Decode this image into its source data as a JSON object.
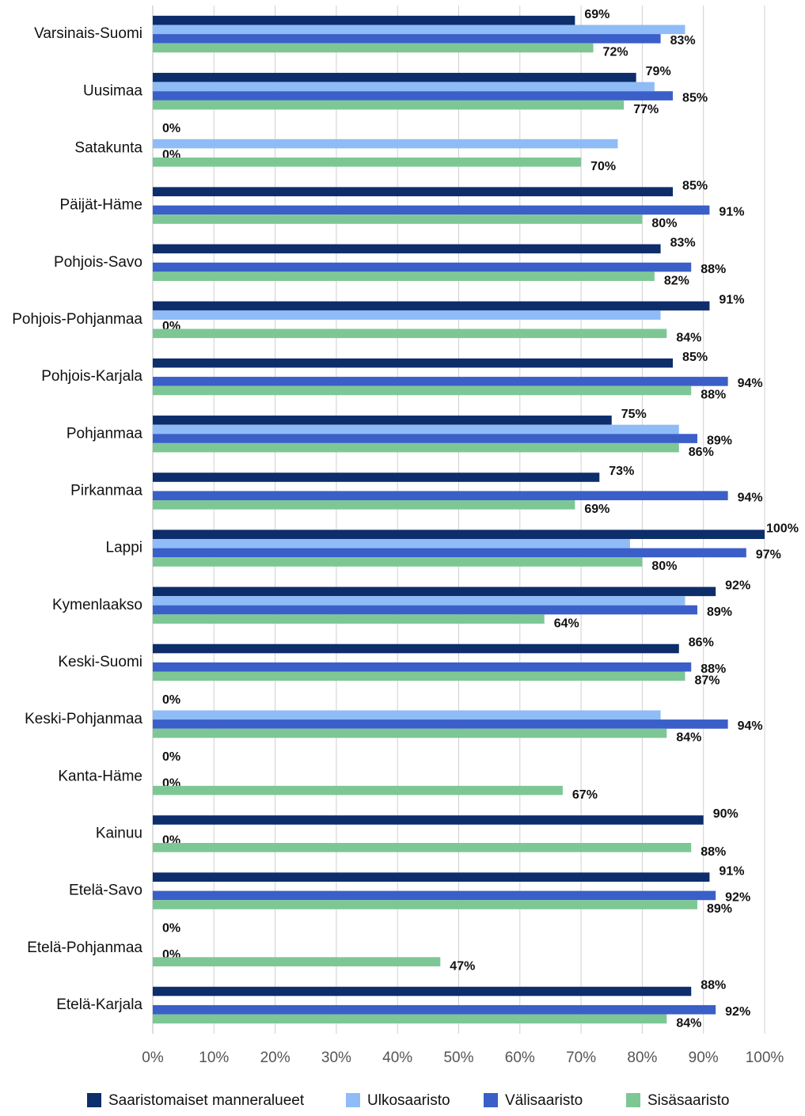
{
  "chart_data": {
    "type": "barh",
    "categories": [
      "Varsinais-Suomi",
      "Uusimaa",
      "Satakunta",
      "Päijät-Häme",
      "Pohjois-Savo",
      "Pohjois-Pohjanmaa",
      "Pohjois-Karjala",
      "Pohjanmaa",
      "Pirkanmaa",
      "Lappi",
      "Kymenlaakso",
      "Keski-Suomi",
      "Keski-Pohjanmaa",
      "Kanta-Häme",
      "Kainuu",
      "Etelä-Savo",
      "Etelä-Pohjanmaa",
      "Etelä-Karjala"
    ],
    "series": [
      {
        "name": "Saaristomaiset manneralueet",
        "color": "#0d2d6b",
        "values": [
          69,
          79,
          0,
          85,
          83,
          91,
          85,
          75,
          73,
          100,
          92,
          86,
          0,
          0,
          90,
          91,
          0,
          88
        ],
        "value_labels": [
          "69%",
          "79%",
          "0%",
          "85%",
          "83%",
          "91%",
          "85%",
          "75%",
          "73%",
          "100%",
          "92%",
          "86%",
          "0%",
          "0%",
          "90%",
          "91%",
          "0%",
          "88%"
        ]
      },
      {
        "name": "Ulkosaaristo",
        "color": "#8fbcf7",
        "values": [
          87,
          82,
          76,
          null,
          null,
          83,
          null,
          86,
          null,
          78,
          87,
          null,
          83,
          null,
          null,
          null,
          null,
          null
        ]
      },
      {
        "name": "Välisaaristo",
        "color": "#3a5fc8",
        "values": [
          83,
          85,
          0,
          91,
          88,
          0,
          94,
          89,
          94,
          97,
          89,
          88,
          94,
          0,
          0,
          92,
          0,
          92
        ],
        "value_labels": [
          "83%",
          "85%",
          "0%",
          "91%",
          "88%",
          "0%",
          "94%",
          "89%",
          "94%",
          "97%",
          "89%",
          "88%",
          "94%",
          "0%",
          "0%",
          "92%",
          "0%",
          "92%"
        ]
      },
      {
        "name": "Sisäsaaristo",
        "color": "#7dc795",
        "values": [
          72,
          77,
          70,
          80,
          82,
          84,
          88,
          86,
          69,
          80,
          64,
          87,
          84,
          67,
          88,
          89,
          47,
          84
        ],
        "value_labels": [
          "72%",
          "77%",
          "70%",
          "80%",
          "82%",
          "84%",
          "88%",
          "86%",
          "69%",
          "80%",
          "64%",
          "87%",
          "84%",
          "67%",
          "88%",
          "89%",
          "47%",
          "84%"
        ]
      }
    ],
    "xlim": [
      0,
      100
    ],
    "xticks": [
      {
        "value": 0,
        "label": "0%"
      },
      {
        "value": 10,
        "label": "10%"
      },
      {
        "value": 20,
        "label": "20%"
      },
      {
        "value": 30,
        "label": "30%"
      },
      {
        "value": 40,
        "label": "40%"
      },
      {
        "value": 50,
        "label": "50%"
      },
      {
        "value": 60,
        "label": "60%"
      },
      {
        "value": 70,
        "label": "70%"
      },
      {
        "value": 80,
        "label": "80%"
      },
      {
        "value": 90,
        "label": "90%"
      },
      {
        "value": 100,
        "label": "100%"
      }
    ],
    "grid": true,
    "legend": "bottom"
  }
}
